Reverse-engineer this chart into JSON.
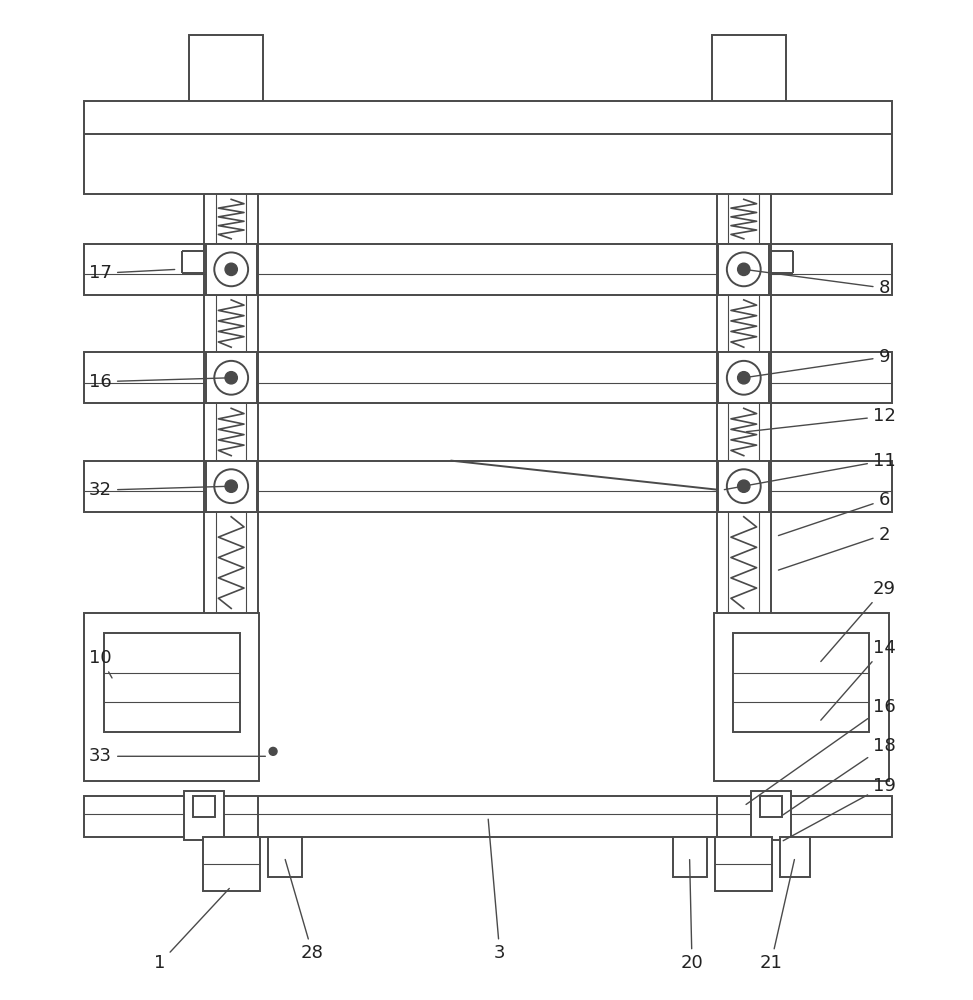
{
  "bg_color": "#ffffff",
  "lc": "#4a4a4a",
  "lw": 1.4,
  "fig_width": 9.73,
  "fig_height": 10.0
}
